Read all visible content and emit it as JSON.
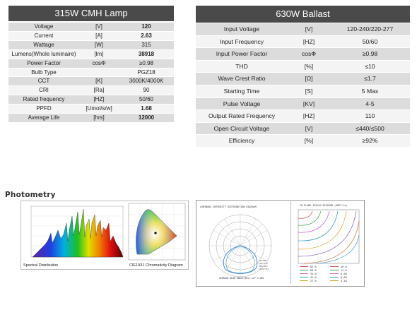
{
  "lamp": {
    "title": "315W CMH Lamp",
    "rows": [
      {
        "param": "Voltage",
        "unit": "[V]",
        "value": "120",
        "bold": true
      },
      {
        "param": "Current",
        "unit": "[A]",
        "value": "2.63",
        "bold": true
      },
      {
        "param": "Wattage",
        "unit": "[W]",
        "value": "315",
        "bold": false
      },
      {
        "param": "Lumens(Whole luminaire)",
        "unit": "[lm]",
        "value": "38918",
        "bold": true
      },
      {
        "param": "Power Factor",
        "unit": "cosΦ",
        "value": "≥0.98",
        "bold": false
      },
      {
        "param": "Bulb Type",
        "unit": "",
        "value": "PGZ18",
        "bold": false
      },
      {
        "param": "CCT",
        "unit": "[K]",
        "value": "3000K/4000K",
        "bold": false
      },
      {
        "param": "CRI",
        "unit": "[Ra]",
        "value": "90",
        "bold": false
      },
      {
        "param": "Rated frequency",
        "unit": "[HZ]",
        "value": "50/60",
        "bold": false
      },
      {
        "param": "PPFD",
        "unit": "[Umol/s/w]",
        "value": "1.68",
        "bold": true
      },
      {
        "param": "Average Life",
        "unit": "[hrs]",
        "value": "12000",
        "bold": true
      }
    ]
  },
  "ballast": {
    "title": "630W Ballast",
    "rows": [
      {
        "param": "Input Voltage",
        "unit": "[V]",
        "value": "120-240/220-277"
      },
      {
        "param": "Input Frequency",
        "unit": "[HZ]",
        "value": "50/60"
      },
      {
        "param": "Input Power Factor",
        "unit": "cosΦ",
        "value": "≥0.98"
      },
      {
        "param": "THD",
        "unit": "[%]",
        "value": "≤10"
      },
      {
        "param": "Wave Crest Ratio",
        "unit": "[Ω]",
        "value": "≤1.7"
      },
      {
        "param": "Starting Time",
        "unit": "[S]",
        "value": "5 Max"
      },
      {
        "param": "Pulse Voltage",
        "unit": "[KV]",
        "value": "4-5"
      },
      {
        "param": "Output Rated Frequency",
        "unit": "[HZ]",
        "value": "110"
      },
      {
        "param": "Open Circuit Voltage",
        "unit": "[V]",
        "value": "≤440/≤500"
      },
      {
        "param": "Efficiency",
        "unit": "[%]",
        "value": "≥92%"
      }
    ]
  },
  "photometry": {
    "title": "Photometry",
    "spectral_caption": "Spectral Distribution",
    "cie_caption": "CIE1931 Chromaticity Diagram",
    "polar_title": "LUMINOUS INTENSITY DISTRIBUTION DIAGRAM",
    "polar_footer": "AVERAGE BEAM ANGLE(50%):127.5 DEG",
    "iso_title": "C0 PLANE ISOLUX DIAGRAM (UNIT:lx)",
    "iso_legend": [
      {
        "a": "82.0",
        "b": "16.0",
        "color": "#e05050"
      },
      {
        "a": "68.0",
        "b": "11.0",
        "color": "#40a040"
      },
      {
        "a": "55.0",
        "b": "8.08",
        "color": "#d060d0"
      },
      {
        "a": "41.0",
        "b": "6.08",
        "color": "#30a0c0"
      },
      {
        "a": "27.0",
        "b": "4.18",
        "color": "#e0a020"
      }
    ],
    "colors": {
      "header": "#4a4a4a"
    }
  }
}
